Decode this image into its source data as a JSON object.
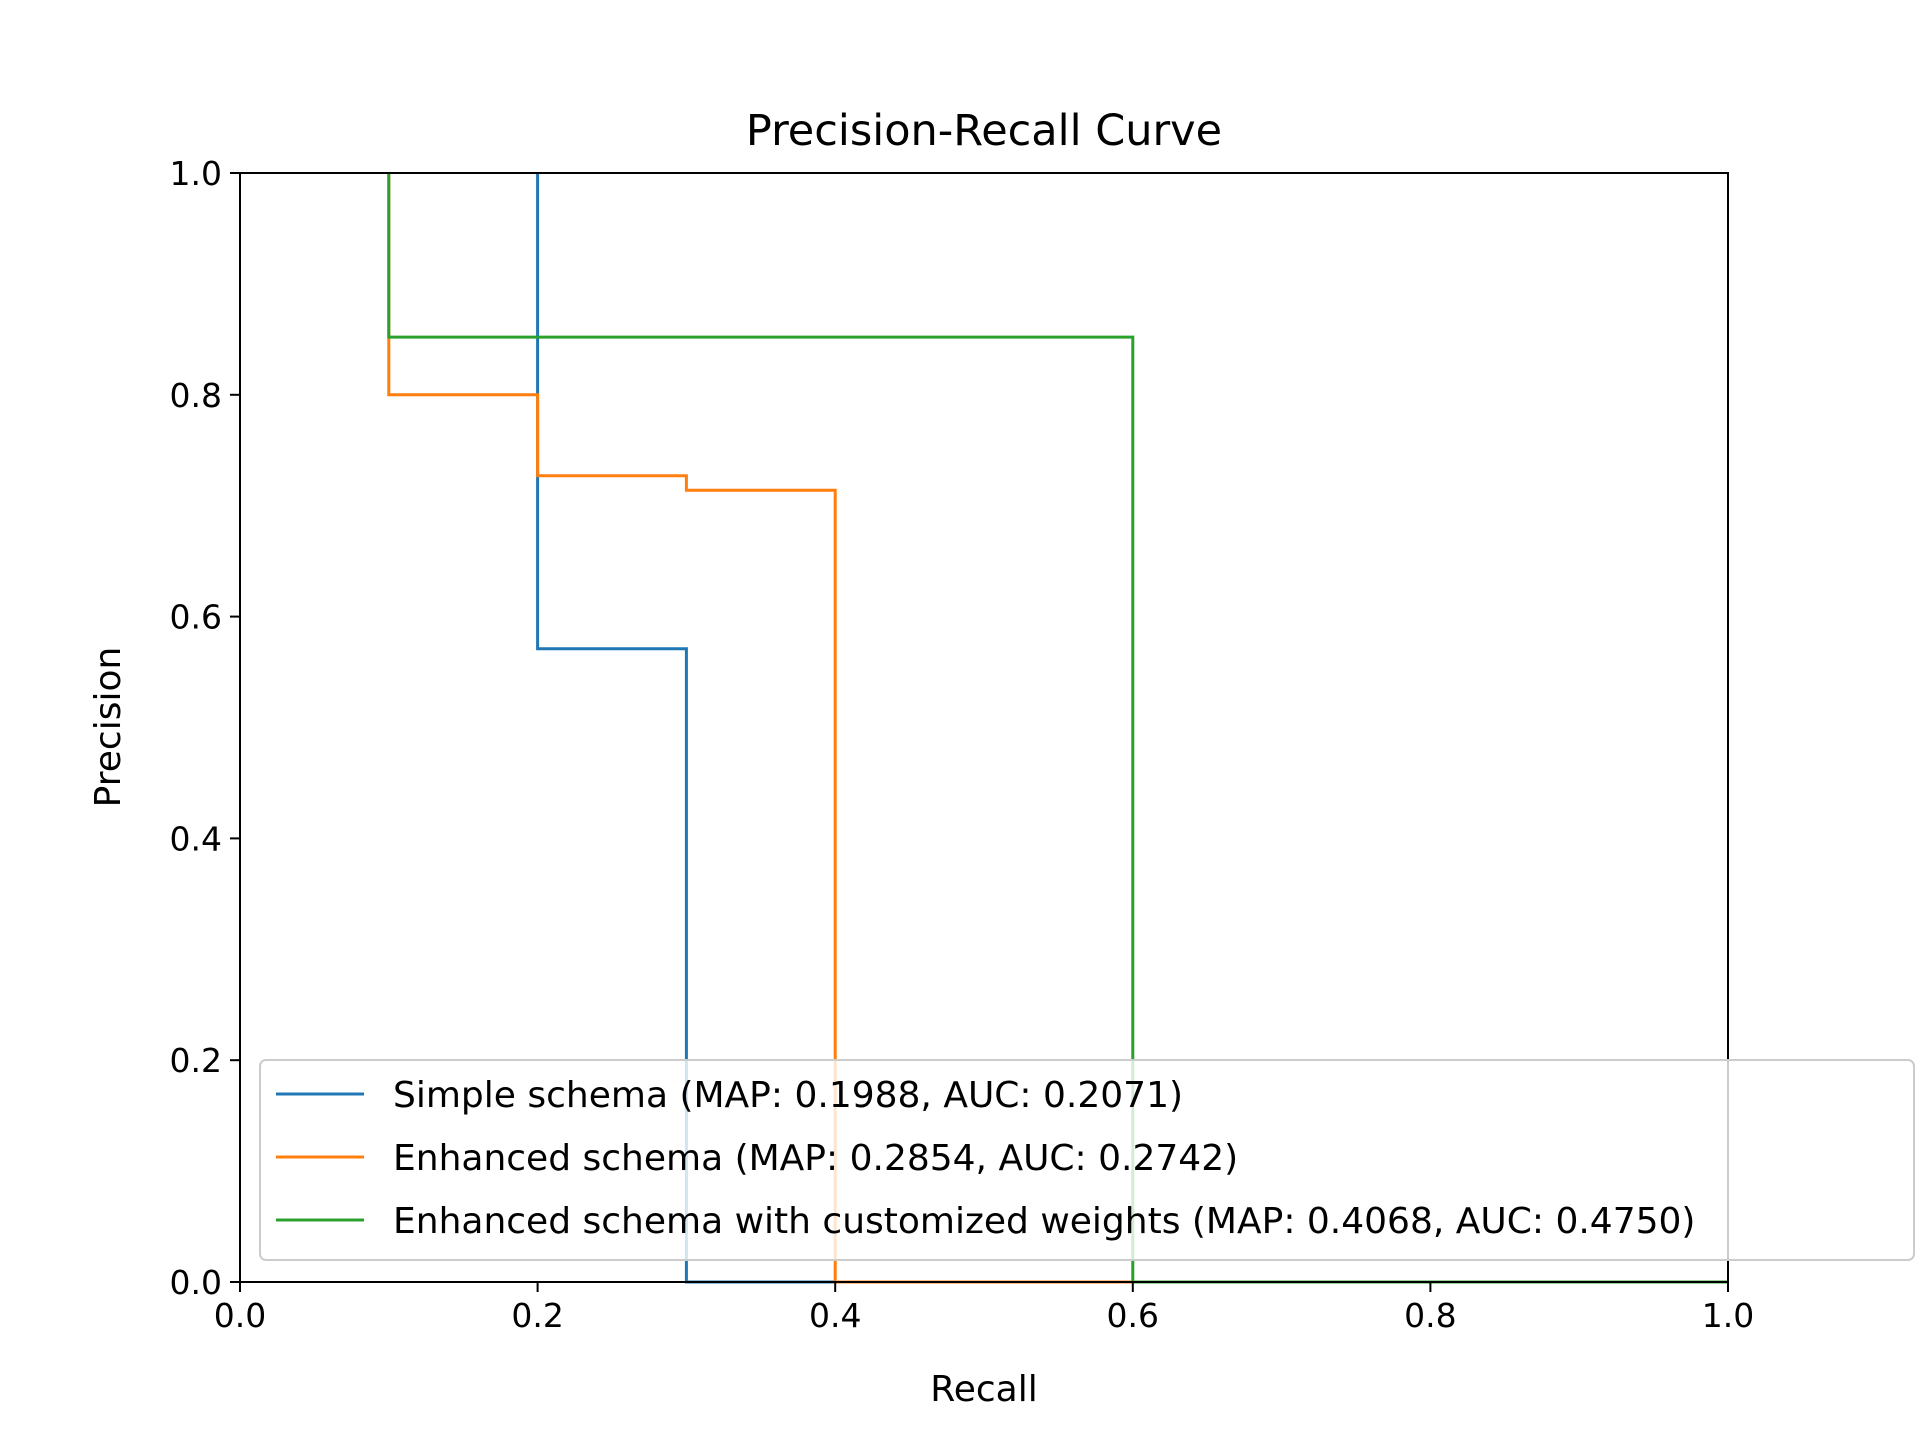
{
  "chart_data": {
    "type": "line",
    "step": true,
    "title": "Precision-Recall Curve",
    "xlabel": "Recall",
    "ylabel": "Precision",
    "xlim": [
      0,
      1
    ],
    "ylim": [
      0,
      1
    ],
    "xticks": [
      "0.0",
      "0.2",
      "0.4",
      "0.6",
      "0.8",
      "1.0"
    ],
    "yticks": [
      "0.0",
      "0.2",
      "0.4",
      "0.6",
      "0.8",
      "1.0"
    ],
    "grid": false,
    "legend_position": "lower-right",
    "series": [
      {
        "name": "Simple schema (MAP: 0.1988, AUC: 0.2071)",
        "color": "#1f77b4",
        "x": [
          0.2,
          0.2,
          0.3,
          0.3,
          1.0
        ],
        "y": [
          1.0,
          0.571,
          0.571,
          0.0,
          0.0
        ]
      },
      {
        "name": "Enhanced schema (MAP: 0.2854, AUC: 0.2742)",
        "color": "#ff7f0e",
        "x": [
          0.1,
          0.1,
          0.2,
          0.2,
          0.3,
          0.3,
          0.4,
          0.4,
          1.0
        ],
        "y": [
          1.0,
          0.8,
          0.8,
          0.727,
          0.727,
          0.714,
          0.714,
          0.0,
          0.0
        ]
      },
      {
        "name": "Enhanced schema with customized weights (MAP: 0.4068, AUC: 0.4750)",
        "color": "#2ca02c",
        "x": [
          0.1,
          0.1,
          0.6,
          0.6,
          1.0
        ],
        "y": [
          1.0,
          0.852,
          0.852,
          0.0,
          0.0
        ]
      }
    ]
  }
}
